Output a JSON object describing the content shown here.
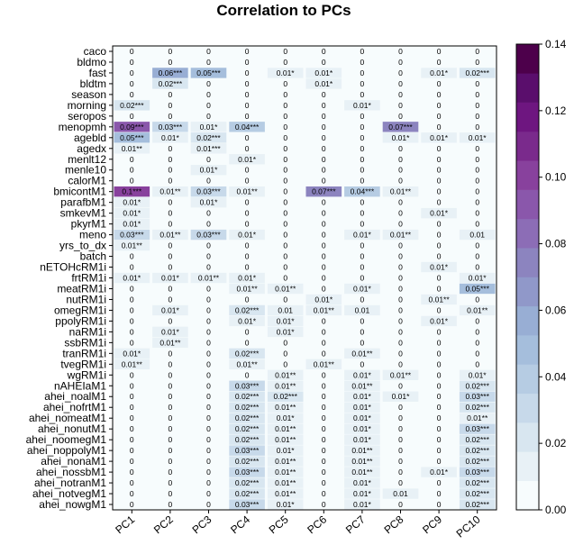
{
  "chart_data": {
    "type": "heatmap",
    "title": "Correlation to PCs",
    "columns": [
      "PC1",
      "PC2",
      "PC3",
      "PC4",
      "PC5",
      "PC6",
      "PC7",
      "PC8",
      "PC9",
      "PC10"
    ],
    "rows": [
      "caco",
      "bldmo",
      "fast",
      "bldtm",
      "season",
      "morning",
      "seropos",
      "menopmh",
      "agebld",
      "agedx",
      "menlt12",
      "menle10",
      "calorM1",
      "bmicontM1",
      "parafbM1",
      "smkevM1",
      "pkyrM1",
      "meno",
      "yrs_to_dx",
      "batch",
      "nETOHcRM1i",
      "frtRM1i",
      "meatRM1i",
      "nutRM1i",
      "omegRM1i",
      "ppolyRM1i",
      "naRM1i",
      "ssbRM1i",
      "tranRM1i",
      "tvegRM1i",
      "wgRM1i",
      "nAHEIaM1",
      "ahei_noalM1",
      "ahei_nofrtM1",
      "ahei_nomeatM1",
      "ahei_nonutM1",
      "ahei_noomegM1",
      "ahei_noppolyM1",
      "ahei_nonaM1",
      "ahei_nossbM1",
      "ahei_notranM1",
      "ahei_notvegM1",
      "ahei_nowgM1"
    ],
    "labels": [
      [
        "0",
        "0",
        "0",
        "0",
        "0",
        "0",
        "0",
        "0",
        "0",
        "0"
      ],
      [
        "0",
        "0",
        "0",
        "0",
        "0",
        "0",
        "0",
        "0",
        "0",
        "0"
      ],
      [
        "0",
        "0.06***",
        "0.05***",
        "0",
        "0.01*",
        "0.01*",
        "0",
        "0",
        "0.01*",
        "0.02***"
      ],
      [
        "0",
        "0.02***",
        "0",
        "0",
        "0",
        "0.01*",
        "0",
        "0",
        "0",
        "0"
      ],
      [
        "0",
        "0",
        "0",
        "0",
        "0",
        "0",
        "0",
        "0",
        "0",
        "0"
      ],
      [
        "0.02***",
        "0",
        "0",
        "0",
        "0",
        "0",
        "0.01*",
        "0",
        "0",
        "0"
      ],
      [
        "0",
        "0",
        "0",
        "0",
        "0",
        "0",
        "0",
        "0",
        "0",
        "0"
      ],
      [
        "0.09***",
        "0.03***",
        "0.01*",
        "0.04***",
        "0",
        "0",
        "0",
        "0.07***",
        "0",
        "0"
      ],
      [
        "0.05***",
        "0.01*",
        "0.02***",
        "0",
        "0",
        "0",
        "0",
        "0.01*",
        "0.01*",
        "0.01*"
      ],
      [
        "0.01**",
        "0",
        "0.01***",
        "0",
        "0",
        "0",
        "0",
        "0",
        "0",
        "0"
      ],
      [
        "0",
        "0",
        "0",
        "0.01*",
        "0",
        "0",
        "0",
        "0",
        "0",
        "0"
      ],
      [
        "0",
        "0",
        "0.01*",
        "0",
        "0",
        "0",
        "0",
        "0",
        "0",
        "0"
      ],
      [
        "0",
        "0",
        "0",
        "0",
        "0",
        "0",
        "0",
        "0",
        "0",
        "0"
      ],
      [
        "0.1***",
        "0.01**",
        "0.03***",
        "0.01**",
        "0",
        "0.07***",
        "0.04***",
        "0.01**",
        "0",
        "0"
      ],
      [
        "0.01*",
        "0",
        "0.01*",
        "0",
        "0",
        "0",
        "0",
        "0",
        "0",
        "0"
      ],
      [
        "0.01*",
        "0",
        "0",
        "0",
        "0",
        "0",
        "0",
        "0",
        "0.01*",
        "0"
      ],
      [
        "0.01*",
        "0",
        "0",
        "0",
        "0",
        "0",
        "0",
        "0",
        "0",
        "0"
      ],
      [
        "0.03***",
        "0.01**",
        "0.03***",
        "0.01*",
        "0",
        "0",
        "0.01*",
        "0.01**",
        "0",
        "0.01"
      ],
      [
        "0.01**",
        "0",
        "0",
        "0",
        "0",
        "0",
        "0",
        "0",
        "0",
        "0"
      ],
      [
        "0",
        "0",
        "0",
        "0",
        "0",
        "0",
        "0",
        "0",
        "0",
        "0"
      ],
      [
        "0",
        "0",
        "0",
        "0",
        "0",
        "0",
        "0",
        "0",
        "0.01*",
        "0"
      ],
      [
        "0.01*",
        "0.01*",
        "0.01**",
        "0.01*",
        "0",
        "0",
        "0",
        "0",
        "0",
        "0.01*"
      ],
      [
        "0",
        "0",
        "0",
        "0.01**",
        "0.01**",
        "0",
        "0.01*",
        "0",
        "0",
        "0.05***"
      ],
      [
        "0",
        "0",
        "0",
        "0",
        "0",
        "0.01*",
        "0",
        "0",
        "0.01**",
        "0"
      ],
      [
        "0",
        "0.01*",
        "0",
        "0.02***",
        "0.01",
        "0.01**",
        "0.01",
        "0",
        "0",
        "0.01**"
      ],
      [
        "0",
        "0",
        "0",
        "0.01*",
        "0.01*",
        "0",
        "0",
        "0",
        "0.01*",
        "0"
      ],
      [
        "0",
        "0.01*",
        "0",
        "0",
        "0.01*",
        "0",
        "0",
        "0",
        "0",
        "0"
      ],
      [
        "0",
        "0.01**",
        "0",
        "0",
        "0",
        "0",
        "0",
        "0",
        "0",
        "0"
      ],
      [
        "0.01*",
        "0",
        "0",
        "0.02***",
        "0",
        "0",
        "0.01**",
        "0",
        "0",
        "0"
      ],
      [
        "0.01**",
        "0",
        "0",
        "0.01**",
        "0",
        "0.01**",
        "0",
        "0",
        "0",
        "0"
      ],
      [
        "0",
        "0",
        "0",
        "0",
        "0.01**",
        "0",
        "0.01*",
        "0.01**",
        "0",
        "0.01*"
      ],
      [
        "0",
        "0",
        "0",
        "0.03***",
        "0.01**",
        "0",
        "0.01**",
        "0",
        "0",
        "0.02***"
      ],
      [
        "0",
        "0",
        "0",
        "0.02***",
        "0.02***",
        "0",
        "0.01*",
        "0.01*",
        "0",
        "0.03***"
      ],
      [
        "0",
        "0",
        "0",
        "0.02***",
        "0.01**",
        "0",
        "0.01*",
        "0",
        "0",
        "0.02***"
      ],
      [
        "0",
        "0",
        "0",
        "0.02***",
        "0.01*",
        "0",
        "0.01*",
        "0",
        "0",
        "0.01**"
      ],
      [
        "0",
        "0",
        "0",
        "0.02***",
        "0.01**",
        "0",
        "0.01*",
        "0",
        "0",
        "0.03***"
      ],
      [
        "0",
        "0",
        "0",
        "0.02***",
        "0.01**",
        "0",
        "0.01*",
        "0",
        "0",
        "0.02***"
      ],
      [
        "0",
        "0",
        "0",
        "0.03***",
        "0.01*",
        "0",
        "0.01**",
        "0",
        "0",
        "0.02***"
      ],
      [
        "0",
        "0",
        "0",
        "0.02***",
        "0.01**",
        "0",
        "0.01**",
        "0",
        "0",
        "0.02***"
      ],
      [
        "0",
        "0",
        "0",
        "0.03***",
        "0.01**",
        "0",
        "0.01**",
        "0",
        "0.01*",
        "0.03***"
      ],
      [
        "0",
        "0",
        "0",
        "0.02***",
        "0.01**",
        "0",
        "0.01*",
        "0",
        "0",
        "0.02***"
      ],
      [
        "0",
        "0",
        "0",
        "0.02***",
        "0.01**",
        "0",
        "0.01*",
        "0.01",
        "0",
        "0.02***"
      ],
      [
        "0",
        "0",
        "0",
        "0.03***",
        "0.01*",
        "0",
        "0.01*",
        "0",
        "0",
        "0.02***"
      ]
    ],
    "colorbar": {
      "min": 0,
      "max": 0.14,
      "ticks": [
        "0.00",
        "0.02",
        "0.04",
        "0.06",
        "0.08",
        "0.10",
        "0.12",
        "0.14"
      ],
      "colors": [
        "#f7fcfd",
        "#e8f1f6",
        "#d8e6f0",
        "#c7d9ea",
        "#b6cce3",
        "#a5bedc",
        "#98aed4",
        "#9098c9",
        "#8c84bf",
        "#8c6db6",
        "#8a57ab",
        "#88419d",
        "#7a2a8c",
        "#6e1680",
        "#5a0e6c",
        "#4d004b"
      ]
    }
  }
}
